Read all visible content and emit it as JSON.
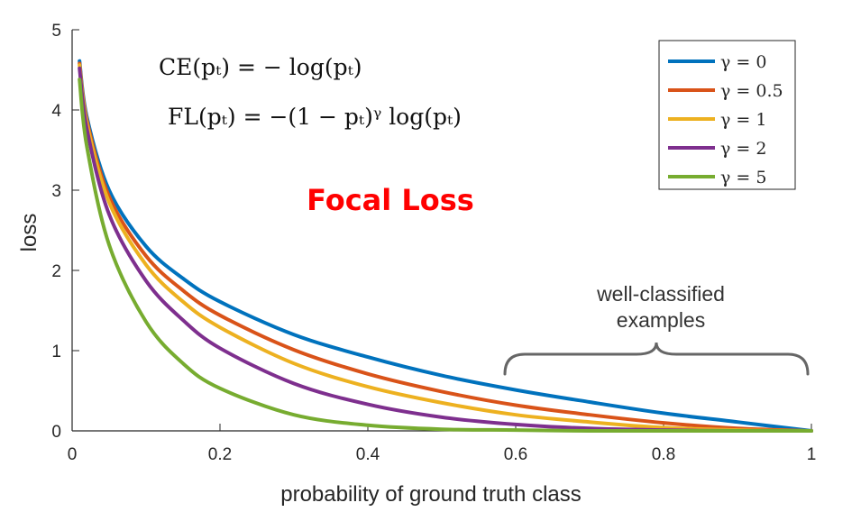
{
  "chart_data": {
    "type": "line",
    "title": "Focal Loss",
    "xlabel": "probability of ground truth class",
    "ylabel": "loss",
    "xlim": [
      0,
      1
    ],
    "ylim": [
      0,
      5
    ],
    "x_ticks": [
      "0",
      "0.2",
      "0.4",
      "0.6",
      "0.8",
      "1"
    ],
    "y_ticks": [
      "0",
      "1",
      "2",
      "3",
      "4",
      "5"
    ],
    "grid": false,
    "legend_position": "top-right",
    "formulas": [
      "CE(pₜ) = − log(pₜ)",
      "FL(pₜ) = −(1 − pₜ)ᵞ log(pₜ)"
    ],
    "annotation": {
      "lines": [
        "well-classified",
        "examples"
      ],
      "x_range": [
        0.6,
        1.0
      ]
    },
    "title_color": "#ff0000",
    "x": [
      0.01,
      0.02,
      0.05,
      0.1,
      0.15,
      0.2,
      0.3,
      0.4,
      0.5,
      0.6,
      0.7,
      0.8,
      0.9,
      1.0
    ],
    "series": [
      {
        "name": "γ = 0",
        "color": "#0072bd",
        "values": [
          4.61,
          3.91,
          3.0,
          2.3,
          1.9,
          1.61,
          1.2,
          0.92,
          0.69,
          0.51,
          0.36,
          0.22,
          0.11,
          0.0
        ]
      },
      {
        "name": "γ = 0.5",
        "color": "#d95319",
        "values": [
          4.58,
          3.87,
          2.92,
          2.18,
          1.75,
          1.44,
          1.01,
          0.71,
          0.49,
          0.32,
          0.2,
          0.1,
          0.03,
          0.0
        ]
      },
      {
        "name": "γ = 1",
        "color": "#edb120",
        "values": [
          4.56,
          3.83,
          2.85,
          2.07,
          1.61,
          1.29,
          0.84,
          0.55,
          0.35,
          0.2,
          0.11,
          0.04,
          0.01,
          0.0
        ]
      },
      {
        "name": "γ = 2",
        "color": "#7e2f8e",
        "values": [
          4.52,
          3.76,
          2.7,
          1.87,
          1.38,
          1.03,
          0.59,
          0.33,
          0.17,
          0.08,
          0.03,
          0.01,
          0.0,
          0.0
        ]
      },
      {
        "name": "γ = 5",
        "color": "#77ac30",
        "values": [
          4.38,
          3.54,
          2.32,
          1.36,
          0.84,
          0.53,
          0.2,
          0.07,
          0.02,
          0.01,
          0.0,
          0.0,
          0.0,
          0.0
        ]
      }
    ]
  }
}
